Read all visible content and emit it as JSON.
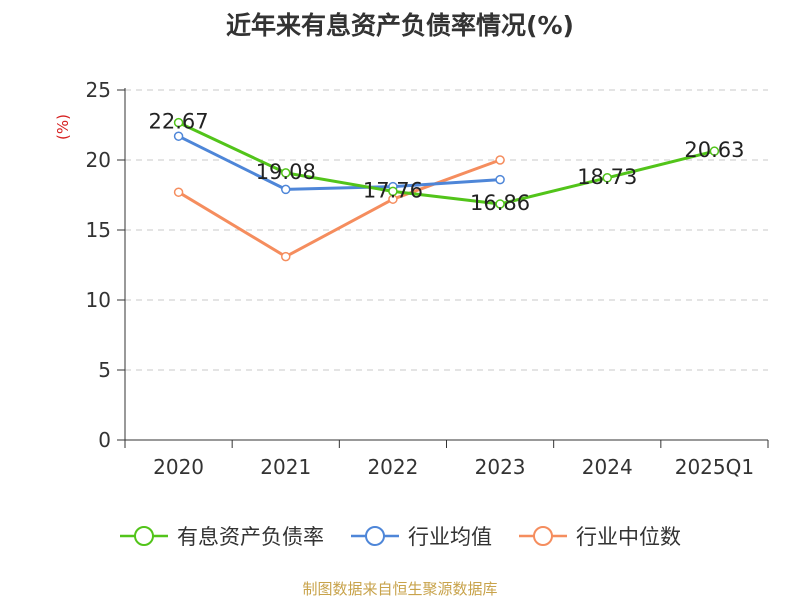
{
  "chart_data": {
    "type": "line",
    "title": "近年来有息资产负债率情况(%)",
    "ylabel": "(%)",
    "xlabel": "",
    "categories": [
      "2020",
      "2021",
      "2022",
      "2023",
      "2024",
      "2025Q1"
    ],
    "ylim": [
      0,
      25
    ],
    "yticks": [
      0,
      5,
      10,
      15,
      20,
      25
    ],
    "grid": true,
    "legend_position": "bottom",
    "series": [
      {
        "name": "有息资产负债率",
        "color": "#52c41a",
        "values": [
          22.67,
          19.08,
          17.76,
          16.86,
          18.73,
          20.63
        ],
        "show_labels": true
      },
      {
        "name": "行业均值",
        "color": "#4e86d8",
        "values": [
          21.7,
          17.9,
          18.1,
          18.6,
          null,
          null
        ],
        "show_labels": false
      },
      {
        "name": "行业中位数",
        "color": "#f58d5e",
        "values": [
          17.7,
          13.1,
          17.2,
          20.0,
          null,
          null
        ],
        "show_labels": false
      }
    ]
  },
  "source_text": "制图数据来自恒生聚源数据库"
}
